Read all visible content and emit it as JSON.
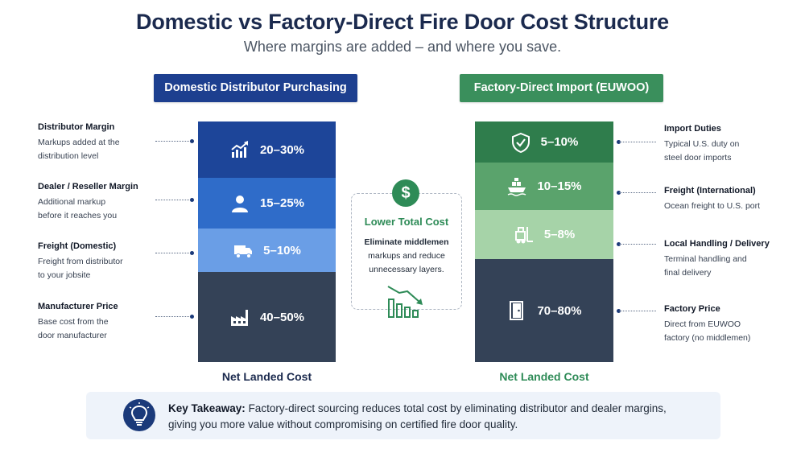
{
  "title": "Domestic vs Factory-Direct Fire Door Cost Structure",
  "subtitle": "Where margins are added – and where you save.",
  "left": {
    "header": "Domestic Distributor Purchasing",
    "header_color": "#1d3f8f",
    "footer": "Net Landed Cost",
    "segments": [
      {
        "value": "20–30%",
        "icon": "trending-up-chart-icon",
        "color": "#1d4599"
      },
      {
        "value": "15–25%",
        "icon": "person-icon",
        "color": "#2f6cc9"
      },
      {
        "value": "5–10%",
        "icon": "truck-icon",
        "color": "#6a9ee6"
      },
      {
        "value": "40–50%",
        "icon": "factory-icon",
        "color": "#344257"
      }
    ],
    "labels": [
      {
        "title": "Distributor Margin",
        "desc_1": "Markups added at the",
        "desc_2": "distribution level"
      },
      {
        "title": "Dealer / Reseller Margin",
        "desc_1": "Additional markup",
        "desc_2": "before it reaches you"
      },
      {
        "title": "Freight (Domestic)",
        "desc_1": "Freight from distributor",
        "desc_2": "to your jobsite"
      },
      {
        "title": "Manufacturer Price",
        "desc_1": "Base cost from the",
        "desc_2": "door manufacturer"
      }
    ]
  },
  "right": {
    "header": "Factory-Direct Import (EUWOO)",
    "header_color": "#3a8f5c",
    "footer": "Net Landed Cost",
    "segments": [
      {
        "value": "5–10%",
        "icon": "shield-check-icon",
        "color": "#2f7d4c"
      },
      {
        "value": "10–15%",
        "icon": "cargo-ship-icon",
        "color": "#5aa36c"
      },
      {
        "value": "5–8%",
        "icon": "forklift-icon",
        "color": "#a6d3a8"
      },
      {
        "value": "70–80%",
        "icon": "door-icon",
        "color": "#344257"
      }
    ],
    "labels": [
      {
        "title": "Import Duties",
        "desc_1": "Typical U.S. duty on",
        "desc_2": "steel door imports"
      },
      {
        "title": "Freight (International)",
        "desc_1": "Ocean freight to U.S. port",
        "desc_2": ""
      },
      {
        "title": "Local Handling / Delivery",
        "desc_1": "Terminal handling and",
        "desc_2": "final delivery"
      },
      {
        "title": "Factory Price",
        "desc_1": "Direct from EUWOO",
        "desc_2": "factory (no middlemen)"
      }
    ]
  },
  "middle": {
    "icon": "dollar-icon",
    "symbol": "$",
    "title": "Lower Total Cost",
    "desc_1": "Eliminate middlemen",
    "desc_2": "markups and reduce",
    "desc_3": "unnecessary layers.",
    "chart_icon": "declining-bar-chart-icon"
  },
  "takeaway": {
    "icon": "lightbulb-icon",
    "label": "Key Takeaway:",
    "text_1": " Factory-direct sourcing reduces total cost by eliminating distributor and dealer margins,",
    "text_2": "giving you more value without compromising on certified fire door quality."
  },
  "colors": {
    "navy": "#1b2a4e",
    "green_text": "#2e8b57",
    "takeaway_bg": "#eef3fa"
  }
}
